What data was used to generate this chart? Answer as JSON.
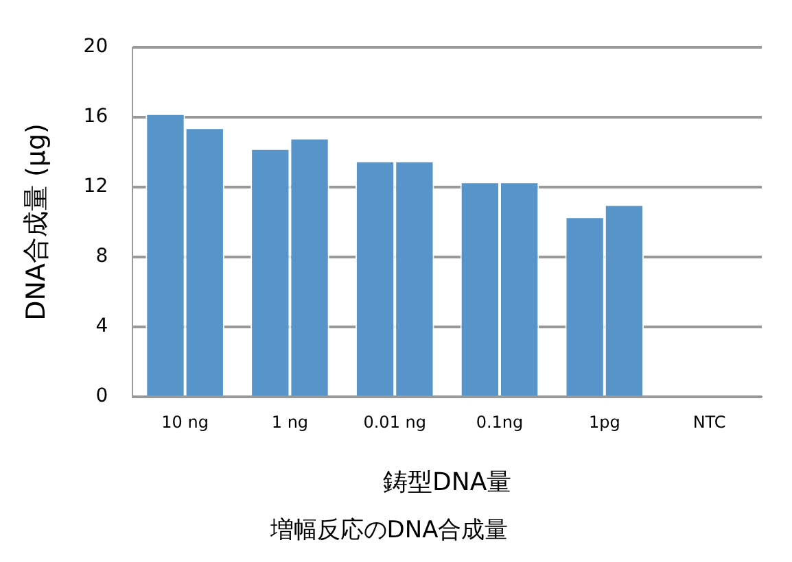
{
  "chart_data": {
    "type": "bar",
    "title": "増幅反応のDNA合成量",
    "xlabel": "鋳型DNA量",
    "ylabel": "DNA合成量 (µg)",
    "categories": [
      "10 ng",
      "1 ng",
      "0.01 ng",
      "0.1ng",
      "1pg",
      "NTC"
    ],
    "series": [
      {
        "color": "#5694c9",
        "values": [
          16.2,
          14.2,
          13.5,
          12.3,
          10.3,
          0
        ]
      },
      {
        "color": "#5694c9",
        "values": [
          15.4,
          14.8,
          13.5,
          12.3,
          11.0,
          0
        ]
      }
    ],
    "ylim": [
      0,
      20
    ],
    "yticks": [
      0,
      4,
      8,
      12,
      16,
      20
    ],
    "grid": "y",
    "legend": false
  }
}
